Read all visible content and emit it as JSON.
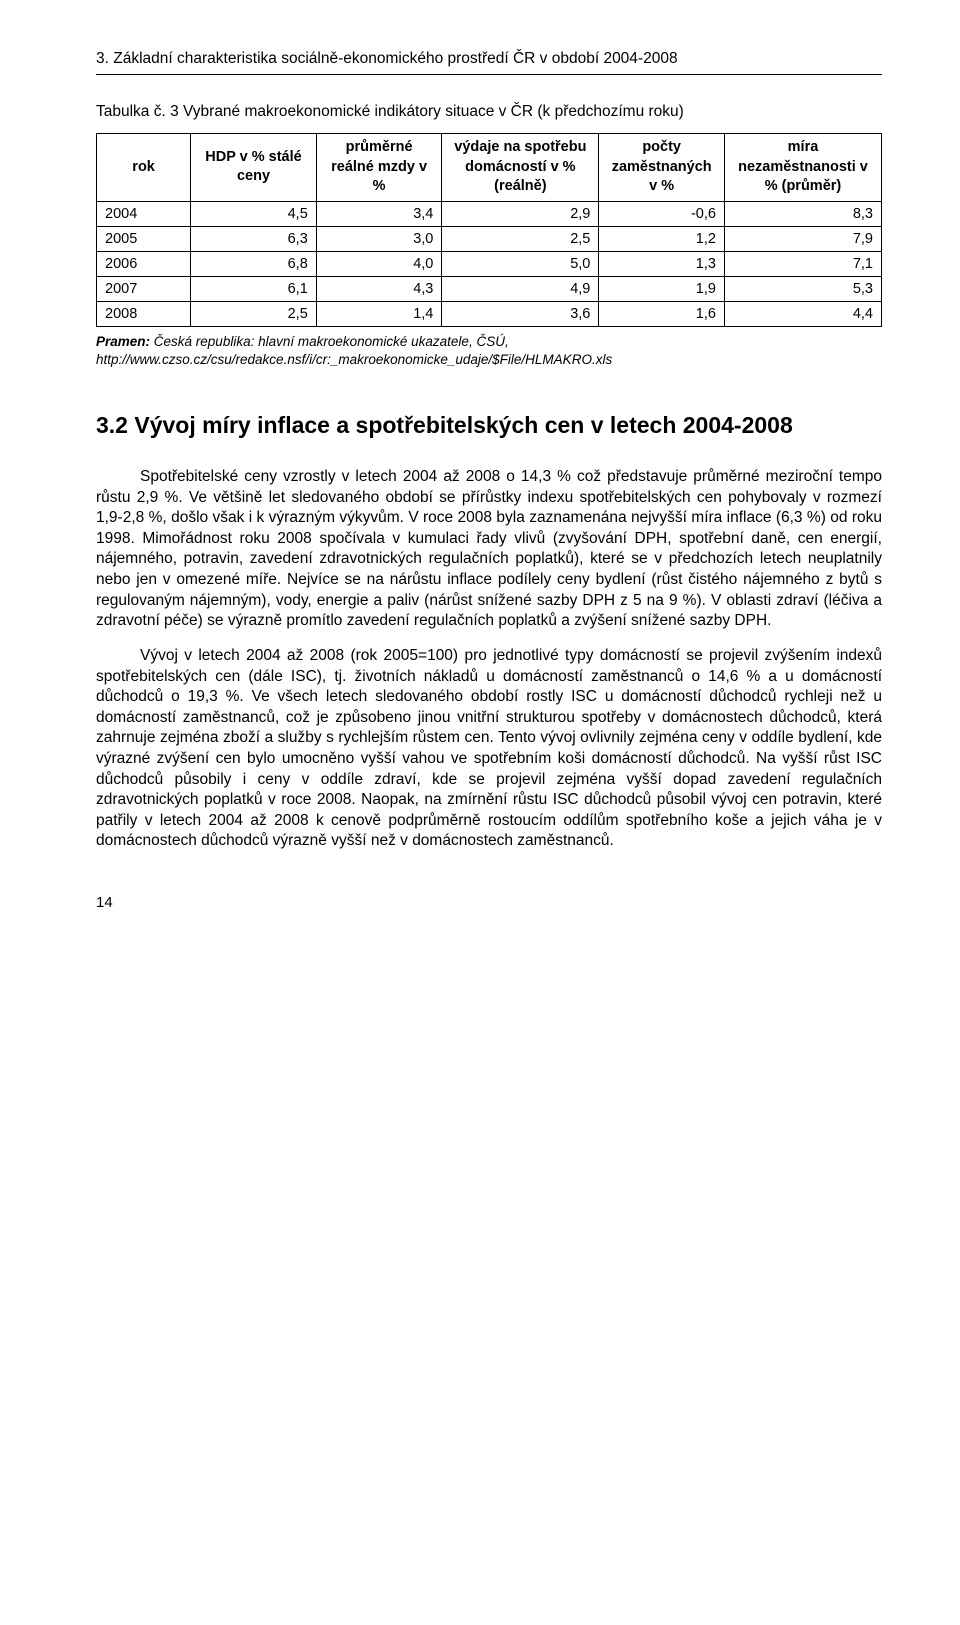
{
  "chapterHeading": "3. Základní charakteristika sociálně-ekonomického prostředí ČR v období 2004-2008",
  "tableCaption": "Tabulka č. 3 Vybrané makroekonomické indikátory situace v ČR (k předchozímu roku)",
  "table": {
    "headers": {
      "c0": "rok",
      "c1": "HDP v % stálé ceny",
      "c2": "průměrné reálné mzdy v %",
      "c3": "výdaje na spotřebu domácností v % (reálně)",
      "c4": "počty zaměstnaných v %",
      "c5": "míra nezaměstnanosti v % (průměr)"
    },
    "rows": [
      {
        "year": "2004",
        "c1": "4,5",
        "c2": "3,4",
        "c3": "2,9",
        "c4": "-0,6",
        "c5": "8,3"
      },
      {
        "year": "2005",
        "c1": "6,3",
        "c2": "3,0",
        "c3": "2,5",
        "c4": "1,2",
        "c5": "7,9"
      },
      {
        "year": "2006",
        "c1": "6,8",
        "c2": "4,0",
        "c3": "5,0",
        "c4": "1,3",
        "c5": "7,1"
      },
      {
        "year": "2007",
        "c1": "6,1",
        "c2": "4,3",
        "c3": "4,9",
        "c4": "1,9",
        "c5": "5,3"
      },
      {
        "year": "2008",
        "c1": "2,5",
        "c2": "1,4",
        "c3": "3,6",
        "c4": "1,6",
        "c5": "4,4"
      }
    ],
    "colWidths": [
      "12%",
      "16%",
      "16%",
      "20%",
      "16%",
      "20%"
    ]
  },
  "source": {
    "label": "Pramen:",
    "text": " Česká republika: hlavní makroekonomické ukazatele, ČSÚ, http://www.czso.cz/csu/redakce.nsf/i/cr:_makroekonomicke_udaje/$File/HLMAKRO.xls"
  },
  "sectionHeading": "3.2 Vývoj míry inflace a spotřebitelských cen v letech 2004-2008",
  "paras": {
    "p1": "Spotřebitelské ceny vzrostly v letech 2004 až 2008 o 14,3 % což představuje průměrné meziroční tempo růstu 2,9 %. Ve většině let sledovaného období se přírůstky indexu spotřebitelských cen pohybovaly v rozmezí 1,9-2,8 %, došlo však i k výrazným výkyvům. V roce 2008 byla zaznamenána nejvyšší míra inflace (6,3 %) od roku 1998. Mimořádnost roku 2008 spočívala v kumulaci řady vlivů (zvyšování DPH, spotřební daně, cen energií, nájemného, potravin, zavedení zdravotnických regulačních poplatků), které se v předchozích letech neuplatnily nebo jen v omezené míře. Nejvíce se na nárůstu inflace podílely ceny bydlení (růst čistého nájemného z bytů s regulovaným nájemným), vody, energie a paliv (nárůst snížené sazby DPH z 5 na 9 %). V oblasti zdraví (léčiva a zdravotní péče) se výrazně promítlo zavedení regulačních poplatků a zvýšení snížené sazby DPH.",
    "p2": "Vývoj v letech 2004 až 2008 (rok 2005=100) pro jednotlivé typy domácností se projevil zvýšením indexů spotřebitelských cen (dále ISC), tj. životních nákladů u domácností zaměstnanců o 14,6 % a u domácností důchodců o 19,3 %. Ve všech letech sledovaného období rostly ISC u domácností důchodců rychleji než u domácností zaměstnanců, což je způsobeno jinou vnitřní strukturou spotřeby v domácnostech důchodců, která zahrnuje zejména zboží a služby s rychlejším růstem cen. Tento vývoj ovlivnily zejména ceny v oddíle bydlení, kde výrazné zvýšení cen bylo umocněno vyšší vahou ve spotřebním koši domácností důchodců. Na vyšší růst ISC důchodců působily i ceny v oddíle zdraví, kde se projevil zejména vyšší dopad zavedení regulačních zdravotnických poplatků v roce 2008. Naopak, na zmírnění růstu ISC důchodců působil vývoj cen potravin, které patřily v letech 2004 až 2008 k cenově podprůměrně rostoucím oddílům spotřebního koše a jejich váha je v domácnostech důchodců výrazně vyšší než v domácnostech zaměstnanců."
  },
  "pageNumber": "14"
}
